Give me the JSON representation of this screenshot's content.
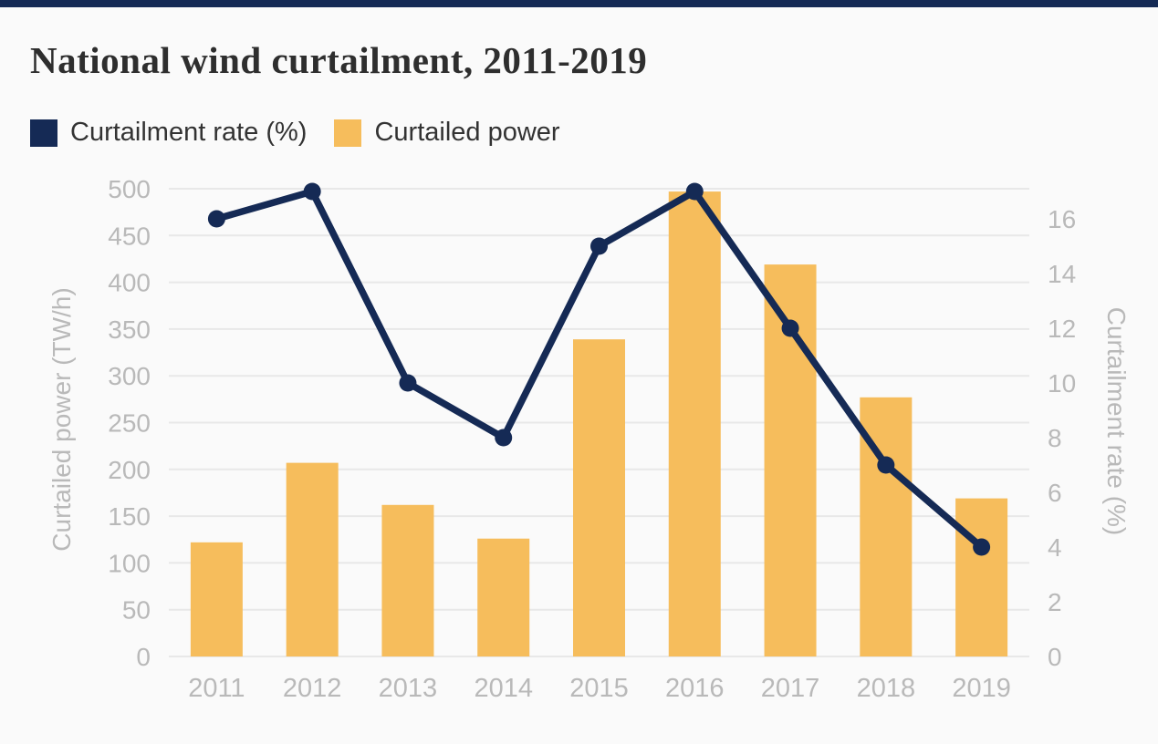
{
  "page": {
    "background_color": "#fafafa",
    "accent_bar_color": "#152a55"
  },
  "chart_data": {
    "type": "combo",
    "title": "National wind curtailment, 2011-2019",
    "categories": [
      "2011",
      "2012",
      "2013",
      "2014",
      "2015",
      "2016",
      "2017",
      "2018",
      "2019"
    ],
    "series": [
      {
        "name": "Curtailment rate (%)",
        "type": "line",
        "axis": "right",
        "color": "#152a55",
        "values": [
          16,
          17,
          10,
          8,
          15,
          17,
          12,
          7,
          4
        ]
      },
      {
        "name": "Curtailed power",
        "type": "bar",
        "axis": "left",
        "color": "#f6bd5c",
        "values": [
          122,
          207,
          162,
          126,
          339,
          497,
          419,
          277,
          169
        ]
      }
    ],
    "left_axis": {
      "label": "Curtailed power (TW/h)",
      "ticks": [
        0,
        50,
        100,
        150,
        200,
        250,
        300,
        350,
        400,
        450,
        500
      ],
      "min": 0,
      "max": 500
    },
    "right_axis": {
      "label": "Curtailment rate (%)",
      "ticks": [
        0,
        2,
        4,
        6,
        8,
        10,
        12,
        14,
        16
      ],
      "min": 0,
      "max": 17.1
    },
    "grid": true,
    "gridline_color": "#e8e8e8",
    "tick_label_color": "#b9b9b9",
    "legend_position": "top-left"
  }
}
